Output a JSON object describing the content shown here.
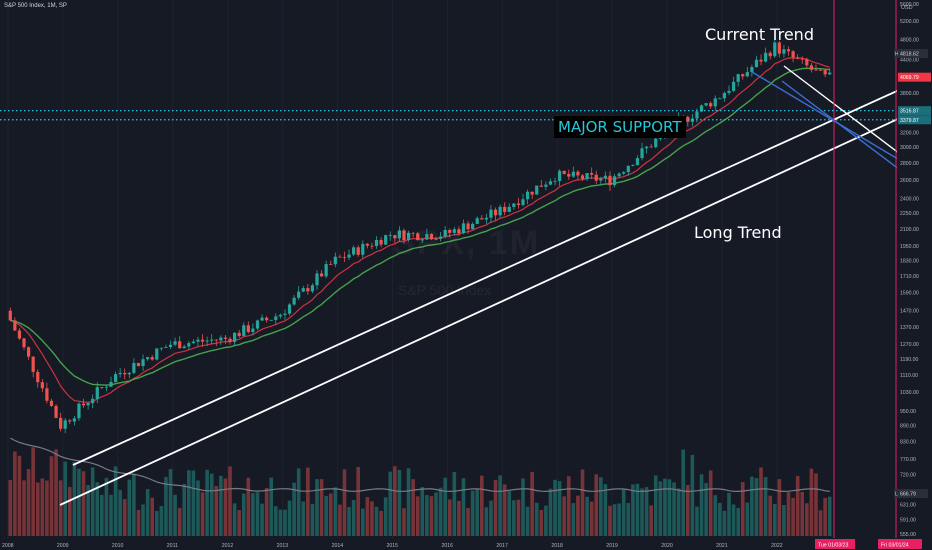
{
  "header": {
    "title": "S&P 500 Index, 1M, SP"
  },
  "watermark": {
    "symbol": "SPX, 1M",
    "name": "S&P 500 Index"
  },
  "annotations": {
    "current_trend": "Current Trend",
    "long_trend": "Long Trend",
    "major_support": "MAJOR SUPPORT"
  },
  "price_axis": {
    "currency": "USD",
    "labels": [
      "5600.00",
      "5200.00",
      "4800.00",
      "4400.00",
      "4060.00",
      "3800.00",
      "3500.00",
      "3200.00",
      "3000.00",
      "2800.00",
      "2600.00",
      "2400.00",
      "2250.00",
      "2100.00",
      "1950.00",
      "1830.00",
      "1710.00",
      "1590.00",
      "1470.00",
      "1370.00",
      "1270.00",
      "1190.00",
      "1110.00",
      "1030.00",
      "950.00",
      "890.00",
      "830.00",
      "770.00",
      "720.00",
      "670.00",
      "631.00",
      "591.00",
      "555.00"
    ],
    "high": {
      "label": "High",
      "value": "4818.62"
    },
    "low": {
      "label": "Low",
      "value": "666.79"
    },
    "last": {
      "value": "4069.79"
    },
    "support_levels": [
      "3516.87",
      "3379.87"
    ]
  },
  "time_axis": {
    "years": [
      "2008",
      "2009",
      "2010",
      "2011",
      "2012",
      "2013",
      "2014",
      "2015",
      "2016",
      "2017",
      "2018",
      "2019",
      "2020",
      "2021",
      "2022"
    ],
    "cursor_date": "Tue 01/03/23",
    "end_date": "Fri 03/01/24"
  },
  "colors": {
    "background": "#161a25",
    "up": "#26a69a",
    "down": "#ef5350",
    "ema_fast": "#f23645",
    "ema_slow": "#4caf50",
    "support": "#2ec4e8",
    "channel": "#3b6fd6",
    "cursor": "#e91e63"
  },
  "chart_data": {
    "type": "candlestick",
    "symbol": "S&P 500 Index",
    "interval": "1M",
    "ylim": [
      555,
      5600
    ],
    "y_scale": "log",
    "series": [
      {
        "name": "price",
        "x": [
          2008.0,
          2009.0,
          2010.0,
          2011.0,
          2012.0,
          2013.0,
          2014.0,
          2015.0,
          2016.0,
          2017.0,
          2018.0,
          2019.0,
          2020.0,
          2021.0,
          2022.0,
          2022.9
        ],
        "values": [
          1470,
          890,
          1110,
          1270,
          1300,
          1450,
          1830,
          2050,
          2050,
          2270,
          2650,
          2600,
          3200,
          3750,
          4650,
          4060
        ]
      }
    ],
    "support_levels": [
      3516.87,
      3379.87
    ],
    "high": 4818.62,
    "low": 666.79,
    "last": 4069.79
  }
}
